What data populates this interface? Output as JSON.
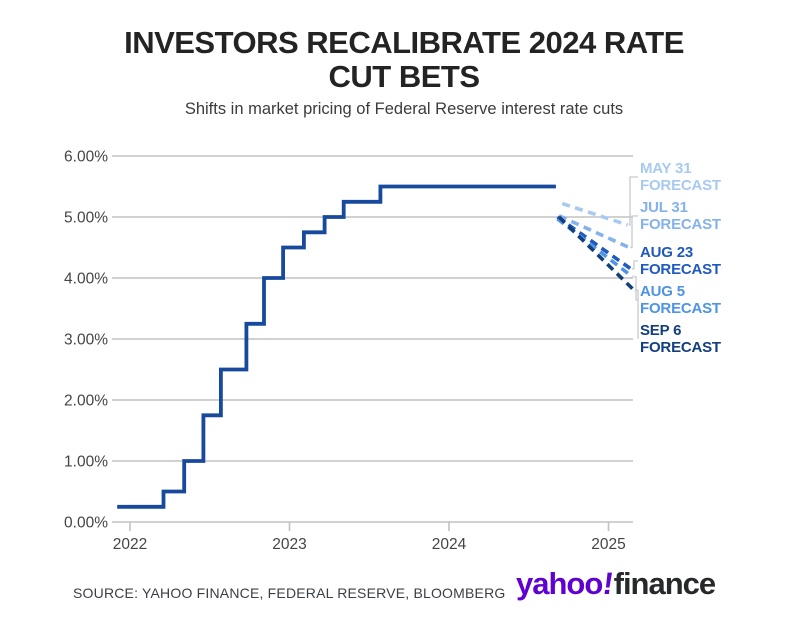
{
  "header": {
    "title_line1": "INVESTORS RECALIBRATE 2024 RATE",
    "title_line2": "CUT BETS",
    "subtitle": "Shifts in market pricing of Federal Reserve interest rate cuts"
  },
  "footer": {
    "source": "SOURCE: YAHOO FINANCE, FEDERAL RESERVE, BLOOMBERG",
    "logo_yahoo": "yahoo",
    "logo_bang": "!",
    "logo_finance": "finance"
  },
  "colors": {
    "actual_line": "#17499D",
    "grid": "#C2C2C2",
    "axis_text": "#454545",
    "connector": "#C7CBD1",
    "title_text": "#232323",
    "logo_purple": "#5F01D1",
    "logo_dark": "#26282A"
  },
  "chart_data": {
    "type": "line",
    "title": "INVESTORS RECALIBRATE 2024 RATE CUT BETS",
    "subtitle": "Shifts in market pricing of Federal Reserve interest rate cuts",
    "xlabel": "",
    "ylabel": "",
    "ylim": [
      0,
      6
    ],
    "xlim": [
      2021.92,
      2025.2
    ],
    "grid": "horizontal",
    "legend_position": "right-edge-labels",
    "yticks": [
      {
        "value": 6,
        "label": "6.00%"
      },
      {
        "value": 5,
        "label": "5.00%"
      },
      {
        "value": 4,
        "label": "4.00%"
      },
      {
        "value": 3,
        "label": "3.00%"
      },
      {
        "value": 2,
        "label": "2.00%"
      },
      {
        "value": 1,
        "label": "1.00%"
      },
      {
        "value": 0,
        "label": "0.00%"
      }
    ],
    "xticks": [
      {
        "value": 2022,
        "label": "2022"
      },
      {
        "value": 2023,
        "label": "2023"
      },
      {
        "value": 2024,
        "label": "2024"
      },
      {
        "value": 2025,
        "label": "2025"
      }
    ],
    "actual_rate_series": {
      "style": "step-solid",
      "color": "#17499D",
      "points": [
        [
          2021.92,
          0.25
        ],
        [
          2022.21,
          0.5
        ],
        [
          2022.34,
          1.0
        ],
        [
          2022.46,
          1.75
        ],
        [
          2022.57,
          2.5
        ],
        [
          2022.73,
          3.25
        ],
        [
          2022.84,
          4.0
        ],
        [
          2022.96,
          4.5
        ],
        [
          2023.09,
          4.75
        ],
        [
          2023.22,
          5.0
        ],
        [
          2023.34,
          5.25
        ],
        [
          2023.57,
          5.5
        ],
        [
          2024.67,
          5.5
        ]
      ]
    },
    "forecast_series": [
      {
        "label_line1": "MAY 31",
        "label_line2": "FORECAST",
        "color": "#A8CAF0",
        "style": "dashed",
        "start": [
          2024.71,
          5.22
        ],
        "end": [
          2025.12,
          4.87
        ]
      },
      {
        "label_line1": "JUL 31",
        "label_line2": "FORECAST",
        "color": "#85B2EC",
        "style": "dashed",
        "start": [
          2024.69,
          5.02
        ],
        "end": [
          2025.13,
          4.5
        ]
      },
      {
        "label_line1": "AUG 23",
        "label_line2": "FORECAST",
        "color": "#1E5ABF",
        "style": "dashed",
        "start": [
          2024.68,
          5.0
        ],
        "end": [
          2025.14,
          4.15
        ]
      },
      {
        "label_line1": "AUG 5",
        "label_line2": "FORECAST",
        "color": "#4E93E4",
        "style": "dashed",
        "start": [
          2024.68,
          4.97
        ],
        "end": [
          2025.15,
          4.02
        ]
      },
      {
        "label_line1": "SEP 6",
        "label_line2": "FORECAST",
        "color": "#123F7E",
        "style": "dashed",
        "start": [
          2024.69,
          5.0
        ],
        "end": [
          2025.16,
          3.8
        ]
      }
    ]
  }
}
